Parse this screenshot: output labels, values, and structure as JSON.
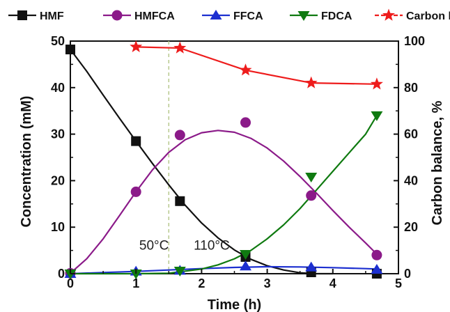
{
  "chart_data": {
    "type": "line",
    "xlabel": "Time (h)",
    "ylabel": "Concentration  (mM)",
    "y2label": "Carbon balance, %",
    "xlim": [
      0,
      5
    ],
    "ylim": [
      0,
      50
    ],
    "y2lim": [
      0,
      100
    ],
    "xticks": [
      "0",
      "1",
      "2",
      "3",
      "4",
      "5"
    ],
    "yticks": [
      "0",
      "10",
      "20",
      "30",
      "40",
      "50"
    ],
    "y2ticks": [
      "0",
      "20",
      "40",
      "60",
      "80",
      "100"
    ],
    "legend_position": "top",
    "grid": false,
    "annotations": [
      {
        "text": "50°C",
        "x": 1.05,
        "y": 5.2
      },
      {
        "text": "110°C",
        "x": 1.88,
        "y": 5.2
      }
    ],
    "divider_x": 1.5,
    "divider_color": "#b7c98d",
    "series": [
      {
        "name": "HMF",
        "marker": "square",
        "color": "#111111",
        "axis": "left",
        "x": [
          0,
          1,
          1.67,
          2.67,
          3.67,
          4.67
        ],
        "y": [
          48.2,
          28.5,
          15.6,
          3.6,
          0.3,
          0.0
        ],
        "curve": [
          [
            0,
            48.2
          ],
          [
            0.25,
            43.5
          ],
          [
            0.5,
            38.4
          ],
          [
            0.75,
            33.4
          ],
          [
            1,
            28.5
          ],
          [
            1.25,
            23.7
          ],
          [
            1.5,
            19.1
          ],
          [
            1.75,
            14.7
          ],
          [
            2,
            10.9
          ],
          [
            2.25,
            7.7
          ],
          [
            2.5,
            5.1
          ],
          [
            2.75,
            3.1
          ],
          [
            3,
            1.7
          ],
          [
            3.25,
            0.8
          ],
          [
            3.5,
            0.2
          ],
          [
            3.75,
            0.0
          ],
          [
            4,
            0.0
          ]
        ]
      },
      {
        "name": "HMFCA",
        "marker": "circle",
        "color": "#8b1a89",
        "axis": "left",
        "x": [
          0,
          1,
          1.67,
          2.67,
          3.67,
          4.67
        ],
        "y": [
          0.1,
          17.6,
          29.8,
          32.5,
          16.8,
          4.0
        ],
        "curve": [
          [
            0,
            0.1
          ],
          [
            0.25,
            3.2
          ],
          [
            0.5,
            7.5
          ],
          [
            0.75,
            12.5
          ],
          [
            1,
            17.6
          ],
          [
            1.25,
            22.3
          ],
          [
            1.5,
            26.1
          ],
          [
            1.75,
            28.8
          ],
          [
            2,
            30.3
          ],
          [
            2.25,
            30.8
          ],
          [
            2.5,
            30.4
          ],
          [
            2.75,
            29.1
          ],
          [
            3,
            27.0
          ],
          [
            3.25,
            24.2
          ],
          [
            3.5,
            20.9
          ],
          [
            3.75,
            17.3
          ],
          [
            4,
            13.6
          ],
          [
            4.25,
            10.0
          ],
          [
            4.5,
            6.6
          ],
          [
            4.67,
            4.2
          ]
        ]
      },
      {
        "name": "FFCA",
        "marker": "triangle-up",
        "color": "#1c2fd0",
        "axis": "left",
        "x": [
          0,
          1,
          1.67,
          2.67,
          3.67,
          4.67
        ],
        "y": [
          0.0,
          0.5,
          0.7,
          1.6,
          1.4,
          0.9
        ],
        "curve": [
          [
            0,
            0.0
          ],
          [
            0.5,
            0.25
          ],
          [
            1,
            0.5
          ],
          [
            1.5,
            0.8
          ],
          [
            2,
            1.1
          ],
          [
            2.5,
            1.35
          ],
          [
            3,
            1.5
          ],
          [
            3.5,
            1.45
          ],
          [
            4,
            1.3
          ],
          [
            4.5,
            1.1
          ],
          [
            4.67,
            1.0
          ]
        ]
      },
      {
        "name": "FDCA",
        "marker": "triangle-down",
        "color": "#0f7a10",
        "axis": "left",
        "x": [
          0,
          1,
          1.67,
          2.67,
          3.67,
          4.67
        ],
        "y": [
          0.0,
          0.0,
          0.6,
          4.2,
          20.8,
          34.0
        ],
        "curve": [
          [
            0,
            0.0
          ],
          [
            1,
            0.0
          ],
          [
            1.5,
            0.1
          ],
          [
            1.67,
            0.4
          ],
          [
            2,
            1.0
          ],
          [
            2.25,
            1.9
          ],
          [
            2.5,
            3.2
          ],
          [
            2.75,
            5.0
          ],
          [
            3,
            7.5
          ],
          [
            3.25,
            10.5
          ],
          [
            3.5,
            14.0
          ],
          [
            3.75,
            18.0
          ],
          [
            4,
            22.0
          ],
          [
            4.25,
            26.0
          ],
          [
            4.5,
            30.0
          ],
          [
            4.67,
            34.0
          ]
        ]
      },
      {
        "name": "Carbon balance (%)",
        "marker": "star",
        "color": "#ee1c1c",
        "axis": "right",
        "dashed": true,
        "x": [
          1,
          1.67,
          2.67,
          3.67,
          4.67
        ],
        "y": [
          97.5,
          97.0,
          87.5,
          82.0,
          81.5
        ],
        "curve": [
          [
            1,
            97.5
          ],
          [
            1.67,
            97.0
          ],
          [
            2.67,
            87.5
          ],
          [
            3.67,
            82.0
          ],
          [
            4.67,
            81.5
          ]
        ]
      }
    ]
  }
}
